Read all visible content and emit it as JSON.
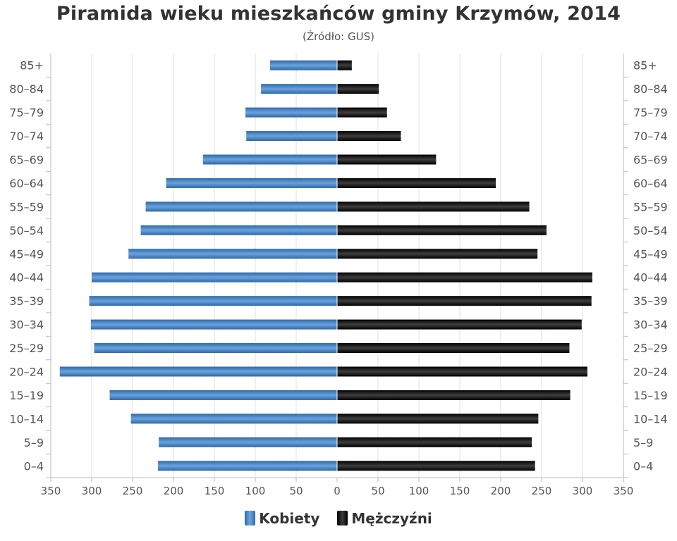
{
  "chart_data": {
    "type": "bar",
    "orientation": "horizontal-population-pyramid",
    "title": "Piramida wieku mieszkańców gminy Krzymów, 2014",
    "subtitle": "(Źródło: GUS)",
    "categories": [
      "0–4",
      "5–9",
      "10–14",
      "15–19",
      "20–24",
      "25–29",
      "30–34",
      "35–39",
      "40–44",
      "45–49",
      "50–54",
      "55–59",
      "60–64",
      "65–69",
      "70–74",
      "75–79",
      "80–84",
      "85+"
    ],
    "series": [
      {
        "name": "Kobiety",
        "color": "#3d7ab8",
        "values": [
          219,
          218,
          252,
          278,
          339,
          297,
          301,
          303,
          300,
          255,
          240,
          234,
          209,
          164,
          111,
          112,
          93,
          82
        ]
      },
      {
        "name": "Mężczyźni",
        "color": "#111111",
        "values": [
          242,
          238,
          246,
          285,
          306,
          284,
          299,
          311,
          312,
          245,
          256,
          235,
          194,
          121,
          78,
          61,
          51,
          18
        ]
      }
    ],
    "x_ticks": [
      "350",
      "300",
      "250",
      "200",
      "150",
      "100",
      "50",
      "0",
      "50",
      "100",
      "150",
      "200",
      "250",
      "300",
      "350"
    ],
    "xlim": [
      -350,
      350
    ],
    "grid": true,
    "legend_position": "bottom-center"
  }
}
